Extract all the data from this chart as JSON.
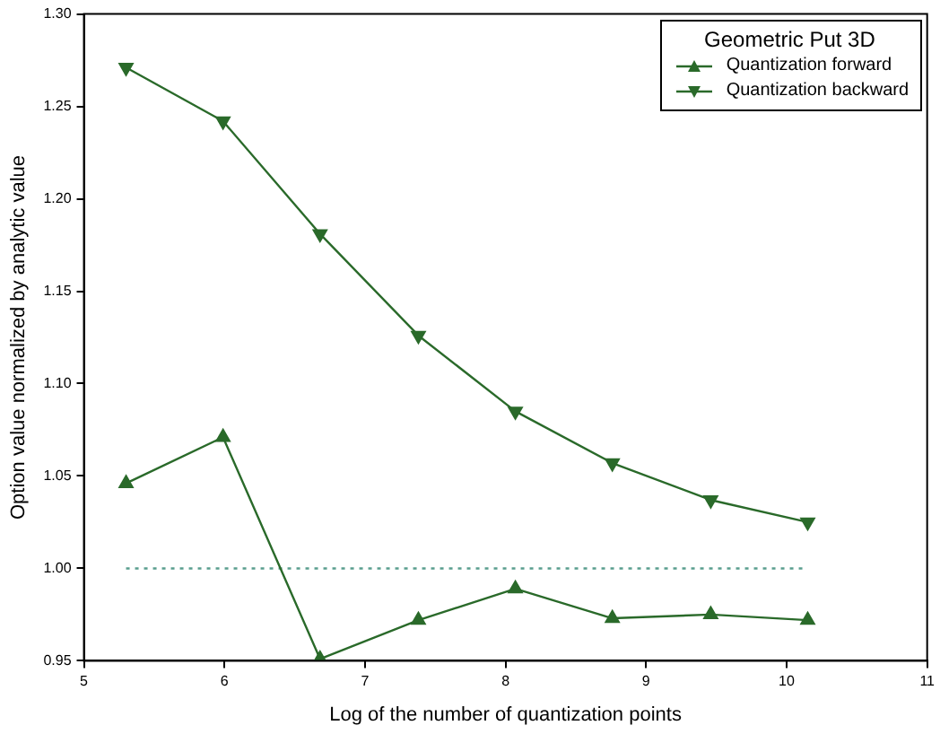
{
  "chart_data": {
    "type": "line",
    "xlabel": "Log of the number of quantization points",
    "ylabel": "Option value normalized by analytic value",
    "legend_title": "Geometric Put 3D",
    "legend": "top right",
    "grid": false,
    "xlim": [
      5,
      11
    ],
    "xticks": [
      5,
      6,
      7,
      8,
      9,
      10,
      11
    ],
    "ylim": [
      0.95,
      1.3
    ],
    "yticks": [
      {
        "value": 0.95,
        "label": "0.95"
      },
      {
        "value": 1.0,
        "label": "1.00"
      },
      {
        "value": 1.05,
        "label": "1.05"
      },
      {
        "value": 1.1,
        "label": "1.10"
      },
      {
        "value": 1.15,
        "label": "1.15"
      },
      {
        "value": 1.2,
        "label": "1.20"
      },
      {
        "value": 1.25,
        "label": "1.25"
      },
      {
        "value": 1.3,
        "label": "1.30"
      }
    ],
    "x": [
      5.3,
      5.99,
      6.68,
      7.38,
      8.07,
      8.76,
      9.46,
      10.15
    ],
    "series": [
      {
        "name": "Quantization forward",
        "color": "#2a6a2a",
        "marker": "triangle",
        "line_style": "solid",
        "values": [
          1.046,
          1.071,
          0.951,
          0.972,
          0.989,
          0.973,
          0.975,
          0.972
        ]
      },
      {
        "name": "Quantization backward",
        "color": "#2a6a2a",
        "marker": "triangle-down",
        "line_style": "solid",
        "values": [
          1.271,
          1.242,
          1.181,
          1.126,
          1.085,
          1.057,
          1.037,
          1.025
        ]
      },
      {
        "color": "#5a9e8e",
        "marker": "none",
        "line_style": "dotted",
        "x": [
          5.3,
          10.15
        ],
        "values": [
          1.0,
          1.0
        ]
      }
    ]
  }
}
